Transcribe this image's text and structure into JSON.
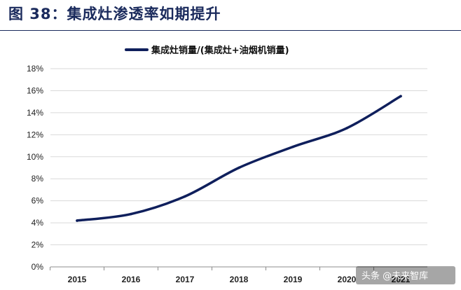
{
  "figure": {
    "title": "图 38：集成灶渗透率如期提升"
  },
  "watermark": {
    "text": "头条 @未来智库"
  },
  "chart_data": {
    "type": "line",
    "x": [
      "2015",
      "2016",
      "2017",
      "2018",
      "2019",
      "2020",
      "2021"
    ],
    "series": [
      {
        "name": "集成灶销量/(集成灶+油烟机销量)",
        "values": [
          4.2,
          4.8,
          6.4,
          9.0,
          10.9,
          12.6,
          15.5
        ],
        "color": "#0f1f5c"
      }
    ],
    "y_tick_labels": [
      "0%",
      "2%",
      "4%",
      "6%",
      "8%",
      "10%",
      "12%",
      "14%",
      "16%",
      "18%"
    ],
    "ylim": [
      0,
      18
    ],
    "ystep": 2,
    "grid": true,
    "legend": "top-center"
  }
}
